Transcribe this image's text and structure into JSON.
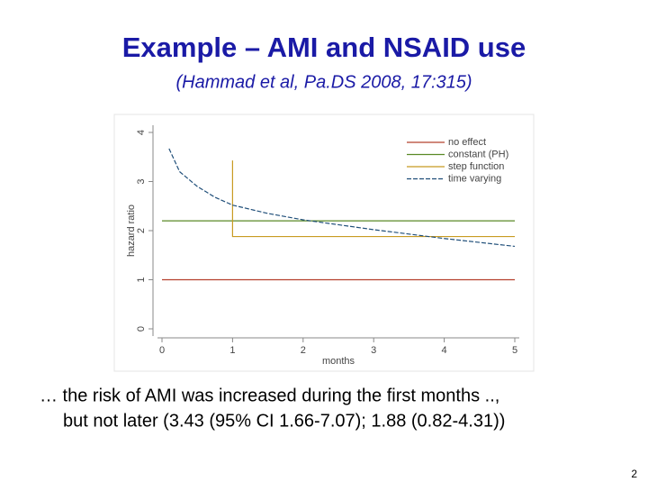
{
  "slide_title": "Example – AMI and NSAID use",
  "citation": "(Hammad et al, Pa.DS 2008, 17:315)",
  "body_lines": [
    "… the risk of AMI was increased during the first months .., ",
    "but not later (3.43 (95% CI 1.66-7.07); 1.88 (0.82-4.31))"
  ],
  "page_number": "2",
  "chart_data": {
    "type": "line",
    "x_label": "months",
    "y_label": "hazard ratio",
    "xlim": [
      0,
      5
    ],
    "xticks": [
      0,
      1,
      2,
      3,
      4,
      5
    ],
    "ylim": [
      0,
      4
    ],
    "yticks": [
      0,
      1,
      2,
      3,
      4
    ],
    "series": [
      {
        "name": "no effect",
        "color": "#b5402e",
        "x": [
          0,
          5
        ],
        "values": [
          1,
          1
        ]
      },
      {
        "name": "constant (PH)",
        "color": "#5a8a26",
        "x": [
          0,
          5
        ],
        "values": [
          2.2,
          2.2
        ]
      },
      {
        "name": "step function",
        "color": "#c89b22",
        "x": [
          1,
          1,
          5
        ],
        "values": [
          3.43,
          1.88,
          1.88
        ]
      },
      {
        "name": "time varying",
        "color": "#1f4e79",
        "dashed": true,
        "x": [
          0.1,
          0.25,
          0.5,
          0.75,
          1,
          1.5,
          2,
          2.5,
          3,
          3.5,
          4,
          4.5,
          5
        ],
        "values": [
          3.67,
          3.2,
          2.9,
          2.68,
          2.52,
          2.35,
          2.22,
          2.12,
          2.02,
          1.93,
          1.84,
          1.76,
          1.68
        ]
      }
    ]
  }
}
